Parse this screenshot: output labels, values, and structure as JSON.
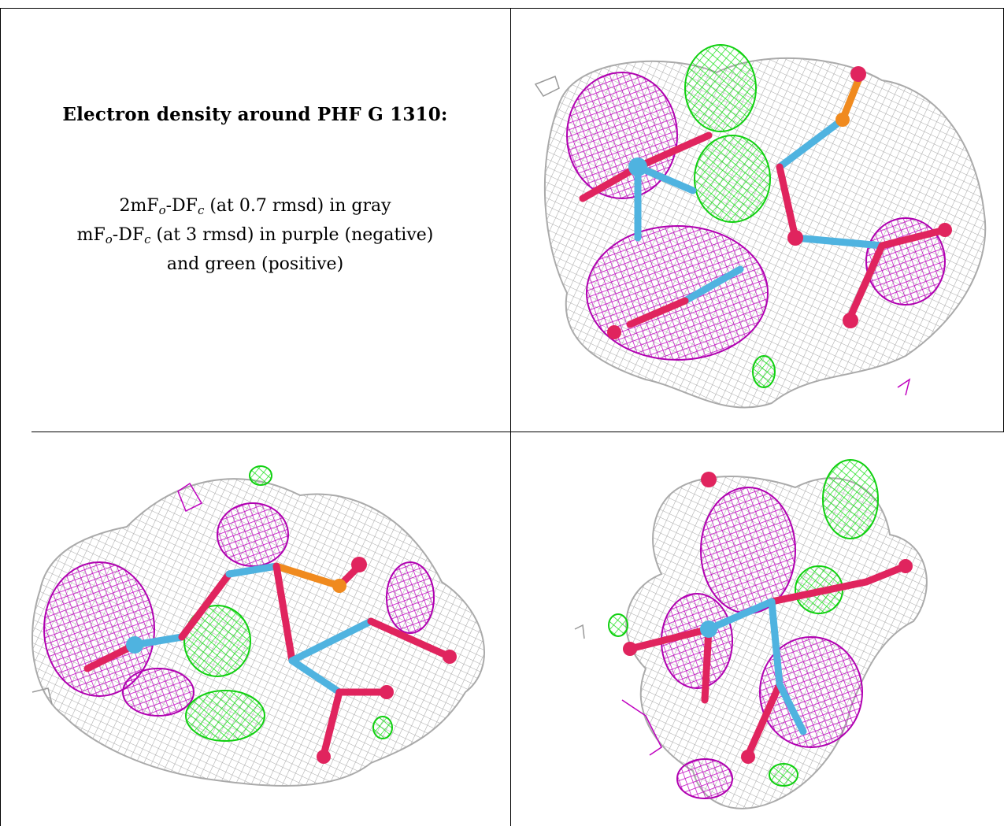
{
  "caption": {
    "title": "Electron density around PHF G 1310:",
    "line1": {
      "a": "2mF",
      "b": "o",
      "c": "-DF",
      "d": "c",
      "e": " (at 0.7 rmsd) in gray"
    },
    "line2": {
      "a": "mF",
      "b": "o",
      "c": "-DF",
      "d": "c",
      "e": " (at 3 rmsd) in purple (negative)"
    },
    "line3": "and green (positive)"
  },
  "colors": {
    "mesh_gray": "#b8b8b8",
    "negative_purple": "#cc00cc",
    "positive_green": "#22ee22",
    "carbon_blue": "#4fb3e0",
    "oxygen_red": "#e0245e",
    "phosphorus_orange": "#f08a1e",
    "border": "#000000"
  },
  "panels": [
    {
      "view": "view-1"
    },
    {
      "view": "view-2"
    },
    {
      "view": "view-3"
    }
  ]
}
